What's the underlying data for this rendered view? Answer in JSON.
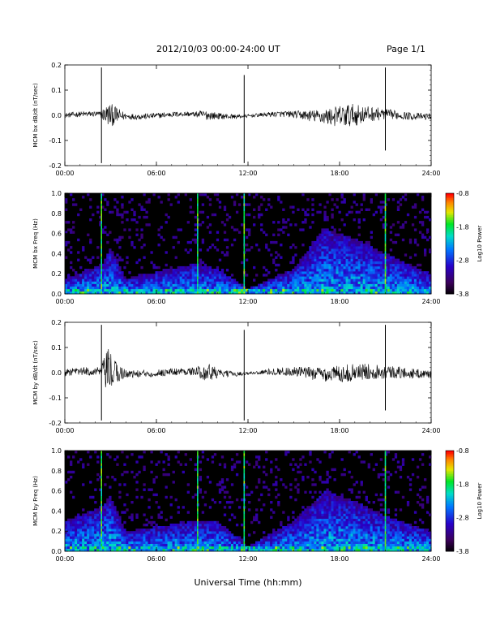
{
  "header": {
    "date_range": "2012/10/03  00:00-24:00 UT",
    "page": "Page 1/1"
  },
  "xaxis": {
    "label": "Universal Time (hh:mm)",
    "ticks": [
      "00:00",
      "06:00",
      "12:00",
      "18:00",
      "24:00"
    ]
  },
  "colors": {
    "trace": "#000000",
    "background": "#000000"
  },
  "chart_data": [
    {
      "type": "line",
      "ylabel": "MCM bx dB/dt (nT/sec)",
      "xlim": [
        0,
        24
      ],
      "ylim": [
        -0.2,
        0.2
      ],
      "yticks": [
        "0.2",
        "0.1",
        "0.0",
        "-0.1",
        "-0.2"
      ],
      "noise_envelope": [
        {
          "x": 0,
          "amp": 0.01
        },
        {
          "x": 2.3,
          "amp": 0.012
        },
        {
          "x": 2.9,
          "amp": 0.05
        },
        {
          "x": 3.2,
          "amp": 0.04
        },
        {
          "x": 4.0,
          "amp": 0.012
        },
        {
          "x": 8.5,
          "amp": 0.01
        },
        {
          "x": 9.2,
          "amp": 0.02
        },
        {
          "x": 10.2,
          "amp": 0.012
        },
        {
          "x": 12.0,
          "amp": 0.006
        },
        {
          "x": 15.0,
          "amp": 0.014
        },
        {
          "x": 17.0,
          "amp": 0.03
        },
        {
          "x": 18.5,
          "amp": 0.05
        },
        {
          "x": 20.0,
          "amp": 0.03
        },
        {
          "x": 21.5,
          "amp": 0.018
        },
        {
          "x": 24,
          "amp": 0.012
        }
      ],
      "spikes": [
        {
          "x": 2.4,
          "y_max": 0.19,
          "y_min": -0.19
        },
        {
          "x": 11.75,
          "y_max": 0.16,
          "y_min": -0.19
        },
        {
          "x": 21.0,
          "y_max": 0.19,
          "y_min": -0.14
        }
      ]
    },
    {
      "type": "heatmap",
      "ylabel": "MCM bx Freq (Hz)",
      "xlim": [
        0,
        24
      ],
      "ylim": [
        0.0,
        1.0
      ],
      "yticks": [
        "1.0",
        "0.8",
        "0.6",
        "0.4",
        "0.2",
        "0.0"
      ],
      "colorbar": {
        "label": "Log10 Power",
        "ticks": [
          "-0.8",
          "-1.8",
          "-2.8",
          "-3.8"
        ],
        "range": [
          -3.8,
          -0.8
        ]
      },
      "hot_lines": [
        2.4,
        8.7,
        11.75,
        21.0
      ],
      "activity": [
        {
          "x": 0,
          "fmax": 0.15
        },
        {
          "x": 2.5,
          "fmax": 0.3
        },
        {
          "x": 3.0,
          "fmax": 0.45
        },
        {
          "x": 4.0,
          "fmax": 0.15
        },
        {
          "x": 8.5,
          "fmax": 0.3
        },
        {
          "x": 10.0,
          "fmax": 0.25
        },
        {
          "x": 12.0,
          "fmax": 0.05
        },
        {
          "x": 15.0,
          "fmax": 0.25
        },
        {
          "x": 17.0,
          "fmax": 0.65
        },
        {
          "x": 19.0,
          "fmax": 0.55
        },
        {
          "x": 21.0,
          "fmax": 0.4
        },
        {
          "x": 24,
          "fmax": 0.2
        }
      ]
    },
    {
      "type": "line",
      "ylabel": "MCM by dB/dt (nT/sec)",
      "xlim": [
        0,
        24
      ],
      "ylim": [
        -0.2,
        0.2
      ],
      "yticks": [
        "0.2",
        "0.1",
        "0.0",
        "-0.1",
        "-0.2"
      ],
      "noise_envelope": [
        {
          "x": 0,
          "amp": 0.015
        },
        {
          "x": 2.3,
          "amp": 0.018
        },
        {
          "x": 2.9,
          "amp": 0.1
        },
        {
          "x": 3.3,
          "amp": 0.05
        },
        {
          "x": 4.0,
          "amp": 0.015
        },
        {
          "x": 8.5,
          "amp": 0.015
        },
        {
          "x": 9.4,
          "amp": 0.04
        },
        {
          "x": 10.2,
          "amp": 0.015
        },
        {
          "x": 12.0,
          "amp": 0.005
        },
        {
          "x": 15.0,
          "amp": 0.02
        },
        {
          "x": 17.0,
          "amp": 0.03
        },
        {
          "x": 18.5,
          "amp": 0.035
        },
        {
          "x": 20.5,
          "amp": 0.03
        },
        {
          "x": 24,
          "amp": 0.015
        }
      ],
      "spikes": [
        {
          "x": 2.4,
          "y_max": 0.19,
          "y_min": -0.19
        },
        {
          "x": 11.75,
          "y_max": 0.17,
          "y_min": -0.19
        },
        {
          "x": 21.0,
          "y_max": 0.19,
          "y_min": -0.15
        }
      ]
    },
    {
      "type": "heatmap",
      "ylabel": "MCM by Freq (Hz)",
      "xlim": [
        0,
        24
      ],
      "ylim": [
        0.0,
        1.0
      ],
      "yticks": [
        "1.0",
        "0.8",
        "0.6",
        "0.4",
        "0.2",
        "0.0"
      ],
      "colorbar": {
        "label": "Log10 Power",
        "ticks": [
          "-0.8",
          "-1.8",
          "-2.8",
          "-3.8"
        ],
        "range": [
          -3.8,
          -0.8
        ]
      },
      "hot_lines": [
        2.4,
        8.7,
        11.75,
        21.0
      ],
      "activity": [
        {
          "x": 0,
          "fmax": 0.3
        },
        {
          "x": 2.5,
          "fmax": 0.45
        },
        {
          "x": 3.0,
          "fmax": 0.55
        },
        {
          "x": 4.0,
          "fmax": 0.2
        },
        {
          "x": 8.5,
          "fmax": 0.3
        },
        {
          "x": 10.0,
          "fmax": 0.3
        },
        {
          "x": 12.0,
          "fmax": 0.05
        },
        {
          "x": 15.0,
          "fmax": 0.3
        },
        {
          "x": 17.0,
          "fmax": 0.6
        },
        {
          "x": 19.0,
          "fmax": 0.5
        },
        {
          "x": 21.0,
          "fmax": 0.35
        },
        {
          "x": 24,
          "fmax": 0.2
        }
      ]
    }
  ]
}
